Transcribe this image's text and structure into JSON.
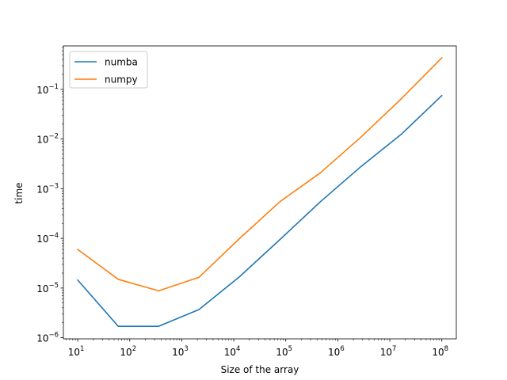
{
  "chart_data": {
    "type": "line",
    "title": "",
    "xlabel": "Size of the array",
    "ylabel": "time",
    "xscale": "log",
    "yscale": "log",
    "xlim": [
      5.3,
      190000000
    ],
    "ylim": [
      9.5e-07,
      0.75
    ],
    "xticks": [
      10,
      100,
      1000,
      10000,
      100000,
      1000000,
      10000000,
      100000000
    ],
    "xtick_labels": [
      {
        "base": "10",
        "exp": "1"
      },
      {
        "base": "10",
        "exp": "2"
      },
      {
        "base": "10",
        "exp": "3"
      },
      {
        "base": "10",
        "exp": "4"
      },
      {
        "base": "10",
        "exp": "5"
      },
      {
        "base": "10",
        "exp": "6"
      },
      {
        "base": "10",
        "exp": "7"
      },
      {
        "base": "10",
        "exp": "8"
      }
    ],
    "yticks": [
      1e-06,
      1e-05,
      0.0001,
      0.001,
      0.01,
      0.1
    ],
    "ytick_labels": [
      {
        "base": "10",
        "exp": "−6"
      },
      {
        "base": "10",
        "exp": "−5"
      },
      {
        "base": "10",
        "exp": "−4"
      },
      {
        "base": "10",
        "exp": "−3"
      },
      {
        "base": "10",
        "exp": "−2"
      },
      {
        "base": "10",
        "exp": "−1"
      }
    ],
    "grid": false,
    "legend_position": "top-left",
    "x": [
      10,
      60,
      360,
      2150,
      13000,
      77500,
      465000,
      2800000,
      16700000,
      100000000
    ],
    "series": [
      {
        "name": "numba",
        "color": "#1f77b4",
        "values": [
          1.45e-05,
          1.7e-06,
          1.7e-06,
          3.7e-06,
          1.7e-05,
          9.5e-05,
          0.00055,
          0.0028,
          0.0125,
          0.075
        ]
      },
      {
        "name": "numpy",
        "color": "#ff7f0e",
        "values": [
          6e-05,
          1.5e-05,
          8.8e-06,
          1.65e-05,
          0.0001,
          0.00055,
          0.0021,
          0.011,
          0.065,
          0.43
        ]
      }
    ]
  }
}
